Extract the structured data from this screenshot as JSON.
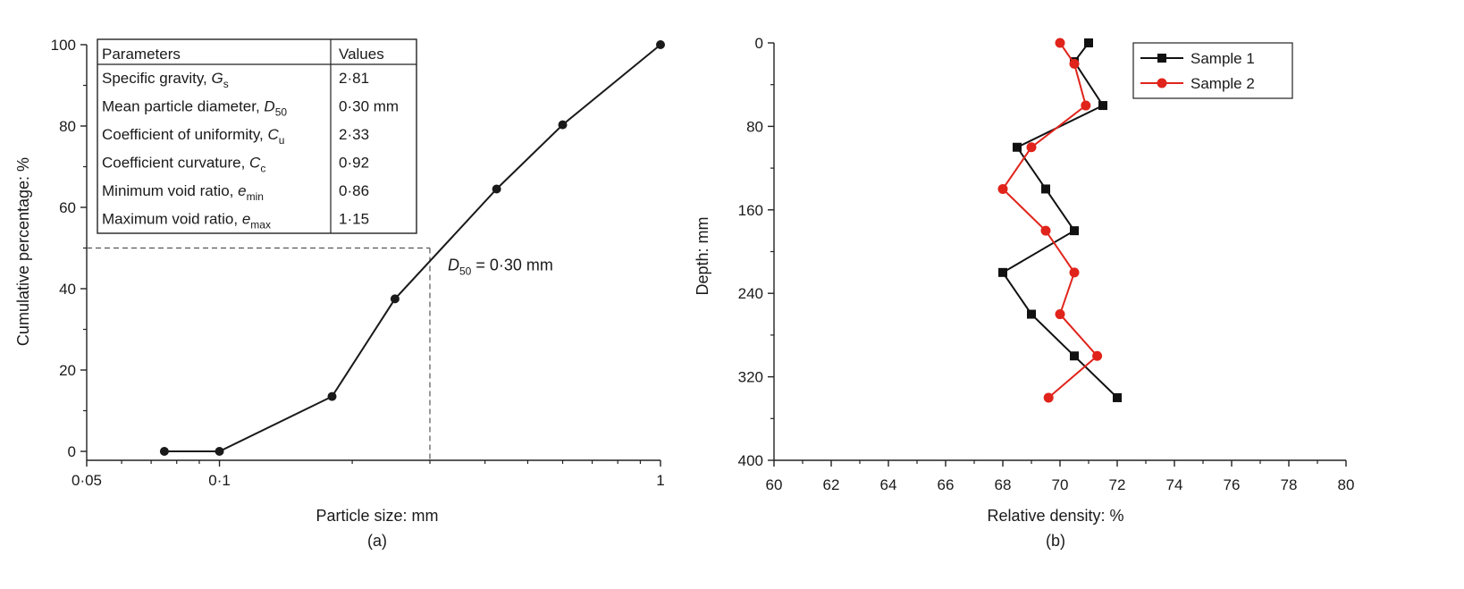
{
  "chart_data": [
    {
      "type": "line",
      "panel_label": "(a)",
      "xlabel": "Particle size: mm",
      "ylabel": "Cumulative percentage: %",
      "xscale": "log",
      "xlim": [
        0.05,
        1
      ],
      "ylim": [
        0,
        100
      ],
      "xticks": [
        {
          "value": 0.05,
          "label": "0·05"
        },
        {
          "value": 0.1,
          "label": "0·1"
        },
        {
          "value": 1,
          "label": "1"
        }
      ],
      "yticks": [
        {
          "value": 0,
          "label": "0"
        },
        {
          "value": 20,
          "label": "20"
        },
        {
          "value": 40,
          "label": "40"
        },
        {
          "value": 60,
          "label": "60"
        },
        {
          "value": 80,
          "label": "80"
        },
        {
          "value": 100,
          "label": "100"
        }
      ],
      "series": [
        {
          "color": "#1a1a1a",
          "marker": "circle",
          "points": [
            {
              "x": 0.075,
              "y": 0
            },
            {
              "x": 0.1,
              "y": 0
            },
            {
              "x": 0.18,
              "y": 13.5
            },
            {
              "x": 0.25,
              "y": 37.5
            },
            {
              "x": 0.425,
              "y": 64.5
            },
            {
              "x": 0.6,
              "y": 80.3
            },
            {
              "x": 1.0,
              "y": 100
            }
          ]
        }
      ],
      "reference_lines": {
        "x": 0.3,
        "y": 50,
        "style": "dashed"
      },
      "annotation": {
        "main": "D",
        "sub": "50",
        "rest": " = 0·30 mm"
      },
      "table": {
        "headers": [
          "Parameters",
          "Values"
        ],
        "rows": [
          {
            "label": "Specific gravity, ",
            "sym": "G",
            "sub": "s",
            "value": "2·81"
          },
          {
            "label": "Mean particle diameter, ",
            "sym": "D",
            "sub": "50",
            "value": "0·30 mm"
          },
          {
            "label": "Coefficient of uniformity, ",
            "sym": "C",
            "sub": "u",
            "value": "2·33"
          },
          {
            "label": "Coefficient curvature, ",
            "sym": "C",
            "sub": "c",
            "value": "0·92"
          },
          {
            "label": "Minimum void ratio, ",
            "sym": "e",
            "sub": "min",
            "value": "0·86"
          },
          {
            "label": "Maximum void ratio, ",
            "sym": "e",
            "sub": "max",
            "value": "1·15"
          }
        ]
      }
    },
    {
      "type": "line",
      "panel_label": "(b)",
      "xlabel": "Relative density: %",
      "ylabel": "Depth: mm",
      "xlim": [
        60,
        80
      ],
      "ylim": [
        400,
        0
      ],
      "y_inverted": true,
      "xticks": [
        {
          "value": 60,
          "label": "60"
        },
        {
          "value": 62,
          "label": "62"
        },
        {
          "value": 64,
          "label": "64"
        },
        {
          "value": 66,
          "label": "66"
        },
        {
          "value": 68,
          "label": "68"
        },
        {
          "value": 70,
          "label": "70"
        },
        {
          "value": 72,
          "label": "72"
        },
        {
          "value": 74,
          "label": "74"
        },
        {
          "value": 76,
          "label": "76"
        },
        {
          "value": 78,
          "label": "78"
        },
        {
          "value": 80,
          "label": "80"
        }
      ],
      "yticks": [
        {
          "value": 0,
          "label": "0"
        },
        {
          "value": 80,
          "label": "80"
        },
        {
          "value": 160,
          "label": "160"
        },
        {
          "value": 240,
          "label": "240"
        },
        {
          "value": 320,
          "label": "320"
        },
        {
          "value": 400,
          "label": "400"
        }
      ],
      "legend_position": "top-right",
      "series": [
        {
          "name": "Sample 1",
          "color": "#111111",
          "marker": "square",
          "points": [
            {
              "x": 71.0,
              "y": 0
            },
            {
              "x": 70.5,
              "y": 18
            },
            {
              "x": 71.5,
              "y": 60
            },
            {
              "x": 68.5,
              "y": 100
            },
            {
              "x": 69.5,
              "y": 140
            },
            {
              "x": 70.5,
              "y": 180
            },
            {
              "x": 68.0,
              "y": 220
            },
            {
              "x": 69.0,
              "y": 260
            },
            {
              "x": 70.5,
              "y": 300
            },
            {
              "x": 72.0,
              "y": 340
            }
          ]
        },
        {
          "name": "Sample 2",
          "color": "#e0241b",
          "marker": "circle",
          "points": [
            {
              "x": 70.0,
              "y": 0
            },
            {
              "x": 70.5,
              "y": 20
            },
            {
              "x": 70.9,
              "y": 60
            },
            {
              "x": 69.0,
              "y": 100
            },
            {
              "x": 68.0,
              "y": 140
            },
            {
              "x": 69.5,
              "y": 180
            },
            {
              "x": 70.5,
              "y": 220
            },
            {
              "x": 70.0,
              "y": 260
            },
            {
              "x": 71.3,
              "y": 300
            },
            {
              "x": 69.6,
              "y": 340
            }
          ]
        }
      ]
    }
  ]
}
